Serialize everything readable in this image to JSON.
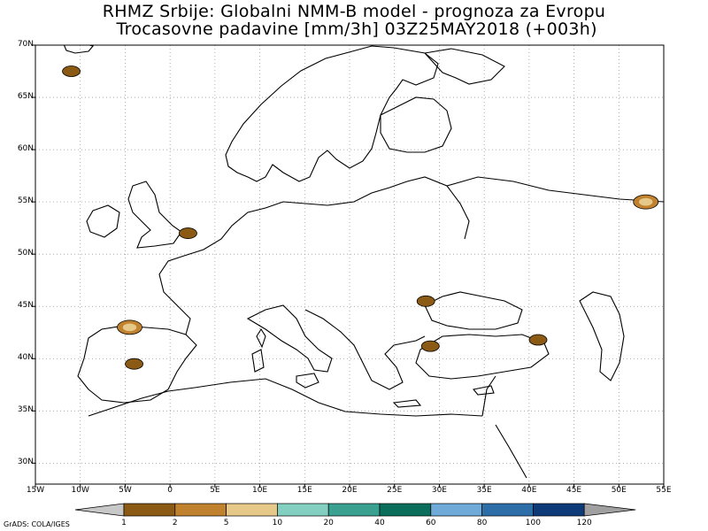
{
  "title": {
    "line1": "RHMZ Srbije: Globalni NMM-B model - prognoza za Evropu",
    "line2": " Trocasovne padavine [mm/3h] 03Z25MAY2018 (+003h)"
  },
  "map": {
    "lon_range": [
      -15,
      55
    ],
    "lat_range": [
      28,
      70
    ],
    "lat_labels": [
      "30N",
      "35N",
      "40N",
      "45N",
      "50N",
      "55N",
      "60N",
      "65N",
      "70N"
    ],
    "lon_labels": [
      "15W",
      "10W",
      "5W",
      "0",
      "5E",
      "10E",
      "15E",
      "20E",
      "25E",
      "30E",
      "35E",
      "40E",
      "45E",
      "50E",
      "55E"
    ],
    "precip_areas": [
      {
        "region": "Atlantic near Iceland",
        "lon": -11,
        "lat": 67.5,
        "class": 1
      },
      {
        "region": "Northern Spain",
        "lon": -4.5,
        "lat": 43.0,
        "class": 2
      },
      {
        "region": "Central Spain",
        "lon": -4,
        "lat": 39.5,
        "class": 1
      },
      {
        "region": "English Channel / Benelux",
        "lon": 2,
        "lat": 52.0,
        "class": 1
      },
      {
        "region": "Romania",
        "lon": 28.5,
        "lat": 45.5,
        "class": 1
      },
      {
        "region": "Caucasus",
        "lon": 41,
        "lat": 41.8,
        "class": 1
      },
      {
        "region": "Western Russia",
        "lon": 53,
        "lat": 55.0,
        "class": 2
      },
      {
        "region": "Western Turkey",
        "lon": 29,
        "lat": 41.2,
        "class": 1
      }
    ]
  },
  "colorbar": {
    "labels": [
      "1",
      "2",
      "5",
      "10",
      "20",
      "40",
      "60",
      "80",
      "100",
      "120"
    ],
    "colors": [
      "#8B5A14",
      "#C0822E",
      "#E6C888",
      "#84D0C0",
      "#3AA090",
      "#0A6E5A",
      "#70AAD8",
      "#2E6EA8",
      "#0E3A78"
    ],
    "extend_low": "#C8C8C8",
    "extend_high": "#A0A0A0"
  },
  "credit": "GrADS: COLA/IGES"
}
